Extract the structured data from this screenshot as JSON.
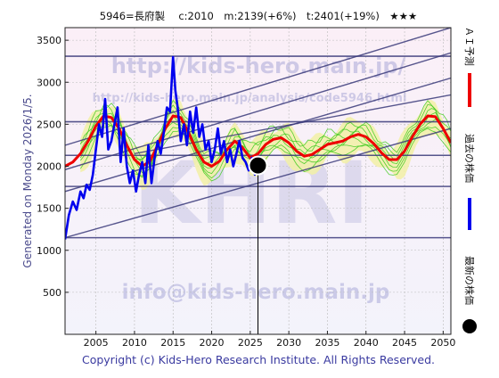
{
  "header": {
    "text": "5946=長府製　 c:2010　m:2139(+6%)　t:2401(+19%)　★★★"
  },
  "side_label": "Generated on Monday 2026/1/5.",
  "footer": "Copyright (c) Kids-Hero Research Institute. All Rights Reserved.",
  "watermarks": {
    "url": "http://kids-hero.main.jp/",
    "url2": "http://kids-hero.main.jp/analysis/code5946.html",
    "big": "KHRI",
    "email": "info@kids-hero.main.jp"
  },
  "legend": {
    "ai_label": "ＡＩ予測",
    "past_label": "過去の株価",
    "latest_label": "最新の株価"
  },
  "colors": {
    "ai": "#ee0000",
    "past": "#0000ee",
    "latest": "#000000",
    "band_fill": "#f2f0a6",
    "band_line": "#44cc22",
    "trend": "#3a3a7a",
    "watermark": "#9a9ad0"
  },
  "chart_data": {
    "type": "line",
    "title": "5946=長府製　c:2010　m:2139(+6%)　t:2401(+19%)　★★★",
    "xlim": [
      2001,
      2051
    ],
    "ylim": [
      0,
      3650
    ],
    "x_ticks": [
      2005,
      2010,
      2015,
      2020,
      2025,
      2030,
      2035,
      2040,
      2045,
      2050
    ],
    "y_ticks": [
      500,
      1000,
      1500,
      2000,
      2500,
      3000,
      3500
    ],
    "grid": true,
    "horizontal_lines": [
      1150,
      1760,
      2130,
      2530,
      3310
    ],
    "trend_lines": [
      [
        [
          2001,
          1700
        ],
        [
          2051,
          3050
        ]
      ],
      [
        [
          2001,
          1960
        ],
        [
          2051,
          3350
        ]
      ],
      [
        [
          2001,
          2250
        ],
        [
          2051,
          3650
        ]
      ],
      [
        [
          2001,
          1150
        ],
        [
          2051,
          2450
        ]
      ],
      [
        [
          2010,
          2150
        ],
        [
          2051,
          2850
        ]
      ]
    ],
    "series": [
      {
        "name": "過去の株価",
        "x": [
          2001.0,
          2001.5,
          2002.0,
          2002.5,
          2003.0,
          2003.4,
          2003.8,
          2004.2,
          2004.6,
          2005.0,
          2005.4,
          2005.8,
          2006.2,
          2006.6,
          2007.0,
          2007.4,
          2007.8,
          2008.2,
          2008.6,
          2009.0,
          2009.4,
          2009.8,
          2010.2,
          2010.6,
          2011.0,
          2011.4,
          2011.8,
          2012.2,
          2012.6,
          2013.0,
          2013.4,
          2013.8,
          2014.2,
          2014.6,
          2015.0,
          2015.3,
          2015.6,
          2016.0,
          2016.4,
          2016.8,
          2017.2,
          2017.6,
          2018.0,
          2018.4,
          2018.8,
          2019.2,
          2019.6,
          2020.0,
          2020.4,
          2020.8,
          2021.2,
          2021.6,
          2022.0,
          2022.4,
          2022.8,
          2023.2,
          2023.6,
          2024.0,
          2024.4,
          2024.8,
          2025.2,
          2025.6,
          2026.0
        ],
        "y": [
          1130,
          1420,
          1580,
          1480,
          1700,
          1620,
          1780,
          1720,
          1900,
          2200,
          2500,
          2350,
          2800,
          2200,
          2300,
          2500,
          2700,
          2050,
          2450,
          2000,
          1800,
          1950,
          1700,
          1900,
          2050,
          1800,
          2250,
          1800,
          2100,
          2300,
          2150,
          2400,
          2700,
          2650,
          3300,
          2900,
          2700,
          2300,
          2500,
          2250,
          2650,
          2400,
          2700,
          2350,
          2500,
          2200,
          2300,
          2050,
          2200,
          2450,
          2150,
          2300,
          2050,
          2200,
          2000,
          2150,
          2300,
          2100,
          2050,
          1950,
          2100,
          1900,
          2010
        ]
      },
      {
        "name": "ＡＩ予測",
        "x": [
          2001,
          2002,
          2003,
          2004,
          2005,
          2006,
          2007,
          2008,
          2009,
          2010,
          2011,
          2012,
          2013,
          2014,
          2015,
          2016,
          2017,
          2018,
          2019,
          2020,
          2021,
          2022,
          2023,
          2024,
          2025,
          2026,
          2027,
          2028,
          2029,
          2030,
          2031,
          2032,
          2033,
          2034,
          2035,
          2036,
          2037,
          2038,
          2039,
          2040,
          2041,
          2042,
          2043,
          2044,
          2045,
          2046,
          2047,
          2048,
          2049,
          2050,
          2051
        ],
        "y": [
          2000,
          2050,
          2150,
          2300,
          2480,
          2600,
          2580,
          2450,
          2250,
          2080,
          2000,
          2060,
          2250,
          2450,
          2600,
          2580,
          2400,
          2200,
          2050,
          2000,
          2060,
          2200,
          2300,
          2220,
          2100,
          2150,
          2260,
          2320,
          2340,
          2280,
          2180,
          2120,
          2140,
          2200,
          2260,
          2280,
          2300,
          2350,
          2380,
          2350,
          2270,
          2160,
          2080,
          2080,
          2180,
          2350,
          2500,
          2600,
          2590,
          2450,
          2280
        ]
      }
    ],
    "latest": {
      "x": 2026,
      "y": 2010,
      "label": "最新の株価"
    }
  }
}
